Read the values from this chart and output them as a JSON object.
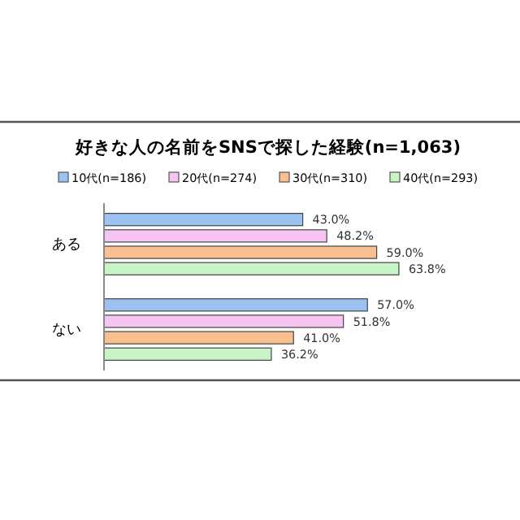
{
  "chart_data": {
    "type": "bar",
    "orientation": "horizontal",
    "title": "好きな人の名前をSNSで探した経験(n=1,063)",
    "categories": [
      "ある",
      "ない"
    ],
    "legend": "top",
    "series": [
      {
        "name": "10代(n=186)",
        "color": "#9cc2f2",
        "values": [
          43.0,
          57.0
        ],
        "value_labels": [
          "43.0%",
          "57.0%"
        ]
      },
      {
        "name": "20代(n=274)",
        "color": "#f5c4f2",
        "values": [
          48.2,
          51.8
        ],
        "value_labels": [
          "48.2%",
          "51.8%"
        ]
      },
      {
        "name": "30代(n=310)",
        "color": "#f8c08e",
        "values": [
          59.0,
          41.0
        ],
        "value_labels": [
          "59.0%",
          "41.0%"
        ]
      },
      {
        "name": "40代(n=293)",
        "color": "#c8f5c6",
        "values": [
          63.8,
          36.2
        ],
        "value_labels": [
          "63.8%",
          "36.2%"
        ]
      }
    ]
  }
}
